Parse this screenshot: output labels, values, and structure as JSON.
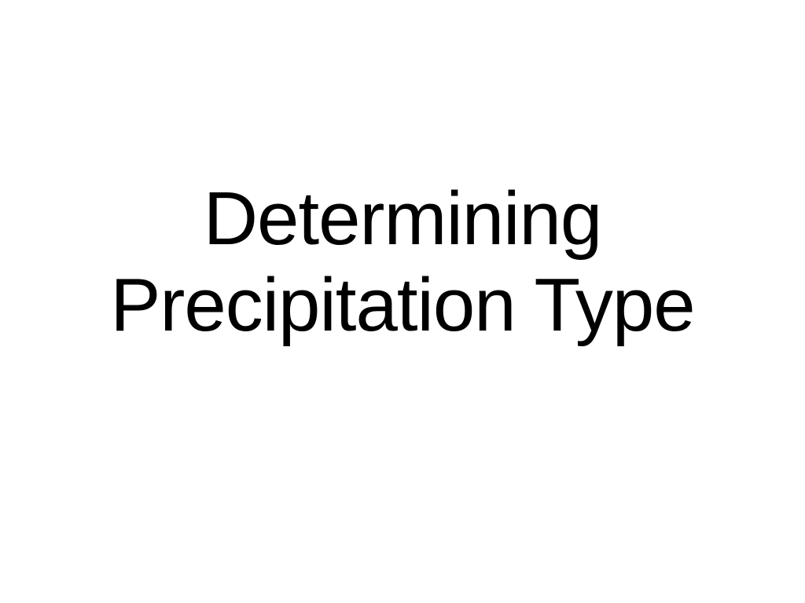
{
  "slide": {
    "title_line1": "Determining",
    "title_line2": "Precipitation Type",
    "background_color": "#ffffff",
    "text_color": "#000000",
    "font_family": "Arial, Helvetica, sans-serif",
    "font_size_pt": 72,
    "font_weight": 400,
    "text_align": "center"
  }
}
